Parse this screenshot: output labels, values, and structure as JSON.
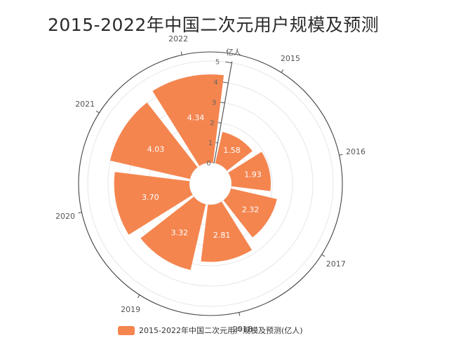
{
  "title": "2015-2022年中国二次元用户规模及预测",
  "chart_data": {
    "type": "polar-bar",
    "title": "2015-2022年中国二次元用户规模及预测",
    "categories": [
      "2015",
      "2016",
      "2017",
      "2018",
      "2019",
      "2020",
      "2021",
      "2022"
    ],
    "series": [
      {
        "name": "2015-2022年中国二次元用户规模及预测(亿人)",
        "values": [
          1.58,
          1.93,
          2.32,
          2.81,
          3.32,
          3.7,
          4.03,
          4.34
        ]
      }
    ],
    "radial_axis": {
      "label": "亿人",
      "min": 0,
      "max": 5,
      "ticks": [
        "0",
        "1",
        "2",
        "3",
        "4",
        "5"
      ]
    },
    "bar_color": "#f4854f",
    "legend_position": "bottom"
  }
}
